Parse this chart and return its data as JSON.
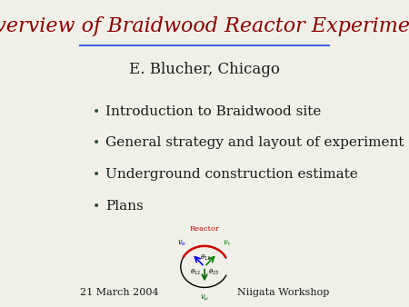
{
  "title": "Overview of Braidwood Reactor Experiment",
  "title_color": "#8B0000",
  "title_fontsize": 16,
  "underline_color": "#4169E1",
  "author": "E. Blucher, Chicago",
  "author_fontsize": 12,
  "bullet_items": [
    "Introduction to Braidwood site",
    "General strategy and layout of experiment",
    "Underground construction estimate",
    "Plans"
  ],
  "bullet_fontsize": 11,
  "bullet_color": "#2F4F2F",
  "footer_left": "21 March 2004",
  "footer_right": "Niigata Workshop",
  "footer_fontsize": 8,
  "background_color": "#f0f0e8",
  "text_color": "#1a1a1a",
  "reactor_label": "Reactor",
  "reactor_label_color": "#cc0000"
}
